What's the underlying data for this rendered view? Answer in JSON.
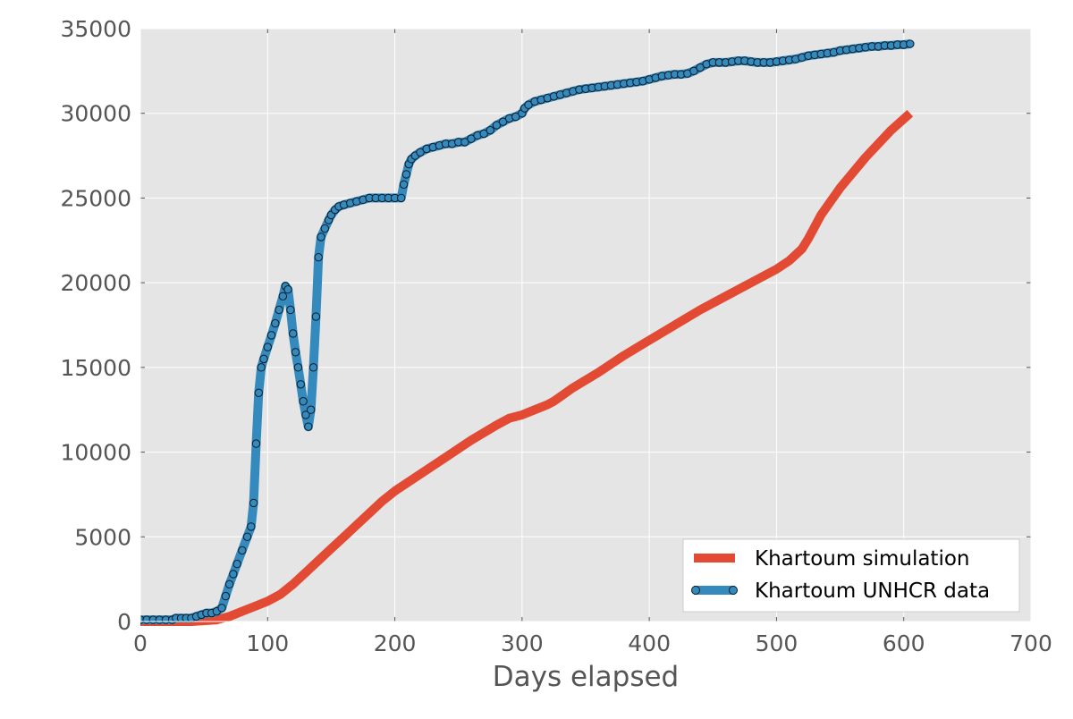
{
  "chart_data": {
    "type": "line",
    "title": "",
    "xlabel": "Days elapsed",
    "ylabel": "",
    "xlim": [
      0,
      700
    ],
    "ylim": [
      0,
      35000
    ],
    "x_ticks": [
      0,
      100,
      200,
      300,
      400,
      500,
      600,
      700
    ],
    "y_ticks": [
      0,
      5000,
      10000,
      15000,
      20000,
      25000,
      30000,
      35000
    ],
    "x_tick_labels": [
      "0",
      "100",
      "200",
      "300",
      "400",
      "500",
      "600",
      "700"
    ],
    "y_tick_labels": [
      "0",
      "5000",
      "10000",
      "15000",
      "20000",
      "25000",
      "30000",
      "35000"
    ],
    "grid": true,
    "background": "#e5e5e5",
    "legend_position": "lower-right",
    "series": [
      {
        "name": "Khartoum simulation",
        "color": "#e24a33",
        "style": "line",
        "x": [
          0,
          40,
          60,
          70,
          80,
          90,
          100,
          110,
          120,
          130,
          140,
          150,
          160,
          170,
          180,
          190,
          200,
          220,
          240,
          260,
          280,
          290,
          300,
          310,
          320,
          325,
          340,
          360,
          380,
          400,
          420,
          440,
          460,
          480,
          500,
          510,
          520,
          525,
          535,
          550,
          570,
          590,
          605
        ],
        "y": [
          0,
          0,
          100,
          300,
          600,
          900,
          1200,
          1600,
          2200,
          2900,
          3600,
          4300,
          5000,
          5700,
          6400,
          7100,
          7700,
          8700,
          9700,
          10700,
          11600,
          12000,
          12200,
          12500,
          12800,
          13000,
          13800,
          14700,
          15700,
          16600,
          17500,
          18400,
          19200,
          20000,
          20800,
          21300,
          22000,
          22600,
          24000,
          25600,
          27400,
          29000,
          30000
        ]
      },
      {
        "name": "Khartoum UNHCR data",
        "color": "#348abd",
        "style": "line-markers",
        "x": [
          0,
          5,
          10,
          15,
          20,
          25,
          28,
          32,
          36,
          40,
          44,
          48,
          52,
          56,
          60,
          64,
          67,
          70,
          73,
          76,
          80,
          84,
          87,
          89,
          91,
          93,
          95,
          97,
          100,
          103,
          106,
          109,
          112,
          114,
          116,
          118,
          120,
          122,
          124,
          126,
          128,
          130,
          132,
          134,
          136,
          138,
          140,
          142,
          145,
          148,
          150,
          153,
          156,
          160,
          165,
          170,
          175,
          180,
          185,
          190,
          195,
          200,
          205,
          207,
          209,
          211,
          213,
          216,
          220,
          225,
          230,
          235,
          240,
          245,
          250,
          255,
          260,
          265,
          270,
          275,
          280,
          285,
          290,
          295,
          300,
          302,
          305,
          310,
          315,
          320,
          325,
          330,
          335,
          340,
          345,
          350,
          355,
          360,
          365,
          370,
          375,
          380,
          385,
          390,
          395,
          400,
          405,
          410,
          415,
          420,
          425,
          430,
          435,
          440,
          445,
          450,
          455,
          460,
          465,
          470,
          475,
          480,
          485,
          490,
          495,
          500,
          505,
          510,
          515,
          520,
          525,
          530,
          535,
          540,
          545,
          550,
          555,
          560,
          565,
          570,
          575,
          580,
          585,
          590,
          595,
          600,
          605
        ],
        "y": [
          100,
          100,
          100,
          100,
          100,
          100,
          200,
          200,
          200,
          200,
          300,
          400,
          500,
          500,
          600,
          800,
          1500,
          2200,
          2800,
          3400,
          4200,
          5000,
          5600,
          7000,
          10500,
          13500,
          15000,
          15500,
          16200,
          16900,
          17600,
          18400,
          19200,
          19800,
          19600,
          18400,
          17000,
          15900,
          15000,
          14000,
          13000,
          12200,
          11500,
          12500,
          15000,
          18000,
          21500,
          22700,
          23200,
          23700,
          24000,
          24300,
          24500,
          24600,
          24700,
          24800,
          24900,
          25000,
          25000,
          25000,
          25000,
          25000,
          25000,
          25800,
          26400,
          27000,
          27300,
          27500,
          27700,
          27900,
          28000,
          28100,
          28200,
          28200,
          28300,
          28300,
          28500,
          28700,
          28800,
          29000,
          29300,
          29500,
          29700,
          29800,
          30000,
          30300,
          30500,
          30700,
          30800,
          30900,
          31000,
          31100,
          31200,
          31300,
          31400,
          31450,
          31500,
          31550,
          31600,
          31650,
          31700,
          31750,
          31800,
          31850,
          31900,
          32000,
          32100,
          32200,
          32250,
          32300,
          32300,
          32350,
          32500,
          32700,
          32900,
          33000,
          33000,
          33000,
          33050,
          33100,
          33100,
          33050,
          33000,
          33000,
          33000,
          33050,
          33100,
          33150,
          33200,
          33300,
          33400,
          33450,
          33500,
          33550,
          33600,
          33700,
          33750,
          33800,
          33850,
          33900,
          33950,
          33950,
          34000,
          34000,
          34050,
          34050,
          34100
        ]
      }
    ]
  }
}
